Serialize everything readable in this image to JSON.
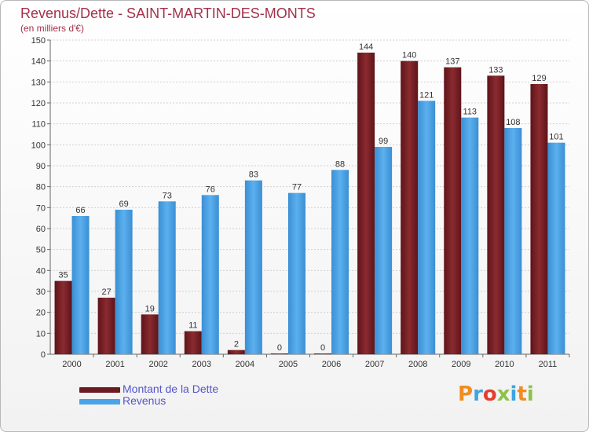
{
  "title": "Revenus/Dette - SAINT-MARTIN-DES-MONTS",
  "subtitle": "(en milliers d'€)",
  "logo_text": "Proxiti",
  "colors": {
    "dette": "#7a1f25",
    "revenus": "#4aa3e6",
    "title": "#a3304a",
    "legend_text": "#5555cc"
  },
  "chart_data": {
    "type": "bar",
    "title": "Revenus/Dette - SAINT-MARTIN-DES-MONTS",
    "subtitle": "(en milliers d'€)",
    "categories": [
      "2000",
      "2001",
      "2002",
      "2003",
      "2004",
      "2005",
      "2006",
      "2007",
      "2008",
      "2009",
      "2010",
      "2011"
    ],
    "series": [
      {
        "name": "Montant de la Dette",
        "values": [
          35,
          27,
          19,
          11,
          2,
          0,
          0,
          144,
          140,
          137,
          133,
          129
        ]
      },
      {
        "name": "Revenus",
        "values": [
          66,
          69,
          73,
          76,
          83,
          77,
          88,
          99,
          121,
          113,
          108,
          101
        ]
      }
    ],
    "ylim": [
      0,
      150
    ],
    "yticks": [
      0,
      10,
      20,
      30,
      40,
      50,
      60,
      70,
      80,
      90,
      100,
      110,
      120,
      130,
      140,
      150
    ],
    "grid": true,
    "legend": "bottom-left"
  }
}
